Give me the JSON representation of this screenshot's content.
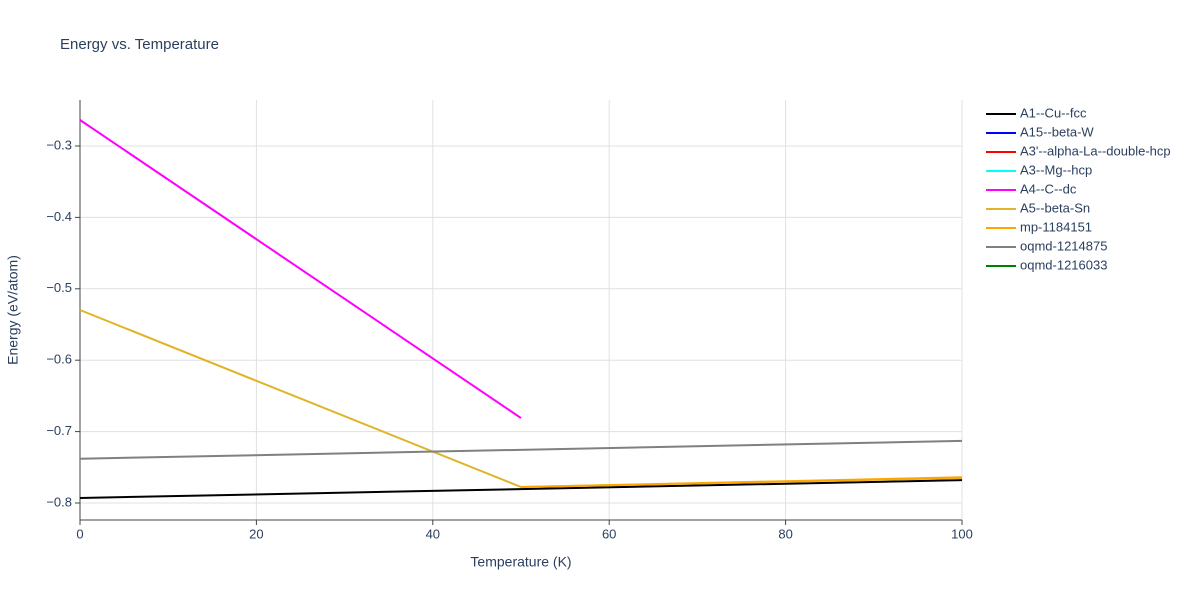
{
  "chart_data": {
    "type": "line",
    "title": "Energy vs. Temperature",
    "x_label": "Temperature (K)",
    "y_label": "Energy (eV/atom)",
    "xlim": [
      0,
      100
    ],
    "xticks": [
      0,
      20,
      40,
      60,
      80,
      100
    ],
    "ylim": [
      -0.8238,
      -0.2356
    ],
    "yticks": [
      {
        "value": -0.8,
        "label": "−0.8"
      },
      {
        "value": -0.7,
        "label": "−0.7"
      },
      {
        "value": -0.6,
        "label": "−0.6"
      },
      {
        "value": -0.5,
        "label": "−0.5"
      },
      {
        "value": -0.4,
        "label": "−0.4"
      },
      {
        "value": -0.3,
        "label": "−0.3"
      }
    ],
    "grid": true,
    "legend": "right",
    "series": [
      {
        "name": "A1--Cu--fcc",
        "color": "#000000",
        "x": [
          0,
          100
        ],
        "values": [
          -0.793,
          -0.768
        ]
      },
      {
        "name": "A15--beta-W",
        "color": "#0000ff",
        "x": [
          0,
          100
        ],
        "values": [
          null,
          null
        ]
      },
      {
        "name": "A3'--alpha-La--double-hcp",
        "color": "#ff0000",
        "x": [
          0,
          100
        ],
        "values": [
          null,
          null
        ]
      },
      {
        "name": "A3--Mg--hcp",
        "color": "#00ffff",
        "x": [
          0,
          100
        ],
        "values": [
          null,
          null
        ]
      },
      {
        "name": "A4--C--dc",
        "color": "#ff00ff",
        "x": [
          0,
          50
        ],
        "values": [
          -0.2636,
          -0.681
        ]
      },
      {
        "name": "A5--beta-Sn",
        "color": "#e0b428",
        "x": [
          0,
          50,
          100
        ],
        "values": [
          -0.5297,
          -0.7776,
          -0.765
        ]
      },
      {
        "name": "mp-1184151",
        "color": "#ffa500",
        "x": [
          50,
          100
        ],
        "values": [
          -0.7776,
          -0.764
        ]
      },
      {
        "name": "oqmd-1214875",
        "color": "#808080",
        "x": [
          0,
          100
        ],
        "values": [
          -0.738,
          -0.713
        ]
      },
      {
        "name": "oqmd-1216033",
        "color": "#008000",
        "x": [
          0,
          100
        ],
        "values": [
          null,
          null
        ]
      }
    ]
  }
}
